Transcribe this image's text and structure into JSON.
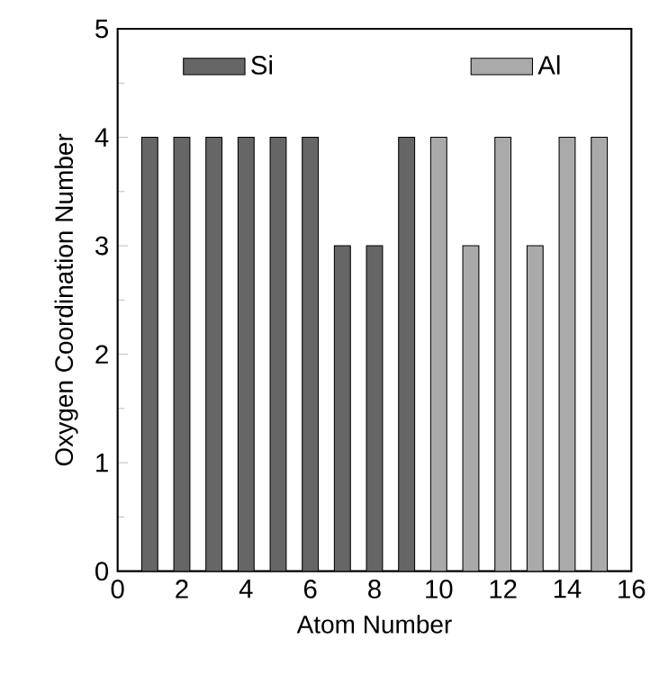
{
  "chart_data": {
    "type": "bar",
    "xlabel": "Atom Number",
    "ylabel": "Oxygen Coordination Number",
    "xlim": [
      0,
      16
    ],
    "xticks": [
      0,
      2,
      4,
      6,
      8,
      10,
      12,
      14,
      16
    ],
    "ylim": [
      0,
      5
    ],
    "yticks": [
      0,
      1,
      2,
      3,
      4,
      5
    ],
    "legend": "top",
    "series": [
      {
        "name": "Si",
        "color": "#666666",
        "x": [
          1,
          2,
          3,
          4,
          5,
          6,
          7,
          8,
          9
        ],
        "values": [
          4,
          4,
          4,
          4,
          4,
          4,
          3,
          3,
          4
        ]
      },
      {
        "name": "Al",
        "color": "#aaaaaa",
        "x": [
          10,
          11,
          12,
          13,
          14,
          15
        ],
        "values": [
          4,
          3,
          4,
          3,
          4,
          4
        ]
      }
    ]
  }
}
